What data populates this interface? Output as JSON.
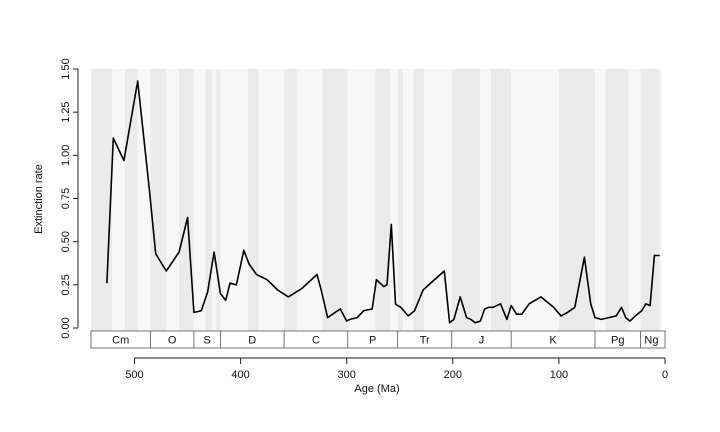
{
  "chart_data": {
    "type": "line",
    "title": "",
    "xlabel": "Age (Ma)",
    "ylabel": "Extinction rate",
    "xlim": [
      541,
      0
    ],
    "ylim": [
      0,
      1.5
    ],
    "x_ticks": [
      500,
      400,
      300,
      200,
      100,
      0
    ],
    "y_ticks": [
      "0.00",
      "0.25",
      "0.50",
      "0.75",
      "1.00",
      "1.25",
      "1.50"
    ],
    "grid": false,
    "legend": "none",
    "line_color": "#000000",
    "periods": [
      {
        "label": "Cm",
        "start": 541,
        "end": 485
      },
      {
        "label": "O",
        "start": 485,
        "end": 444
      },
      {
        "label": "S",
        "start": 444,
        "end": 419
      },
      {
        "label": "D",
        "start": 419,
        "end": 359
      },
      {
        "label": "C",
        "start": 359,
        "end": 299
      },
      {
        "label": "P",
        "start": 299,
        "end": 252
      },
      {
        "label": "Tr",
        "start": 252,
        "end": 201
      },
      {
        "label": "J",
        "start": 201,
        "end": 145
      },
      {
        "label": "K",
        "start": 145,
        "end": 66
      },
      {
        "label": "Pg",
        "start": 66,
        "end": 23
      },
      {
        "label": "Ng",
        "start": 23,
        "end": 2.6
      }
    ],
    "background_bands": [
      {
        "start": 541,
        "end": 521,
        "shade": "#ebebeb"
      },
      {
        "start": 521,
        "end": 509,
        "shade": "#f7f7f7"
      },
      {
        "start": 509,
        "end": 497,
        "shade": "#ebebeb"
      },
      {
        "start": 497,
        "end": 485,
        "shade": "#f7f7f7"
      },
      {
        "start": 485,
        "end": 470,
        "shade": "#ebebeb"
      },
      {
        "start": 470,
        "end": 458,
        "shade": "#f7f7f7"
      },
      {
        "start": 458,
        "end": 444,
        "shade": "#ebebeb"
      },
      {
        "start": 444,
        "end": 433,
        "shade": "#f7f7f7"
      },
      {
        "start": 433,
        "end": 427,
        "shade": "#ebebeb"
      },
      {
        "start": 427,
        "end": 423,
        "shade": "#f7f7f7"
      },
      {
        "start": 423,
        "end": 419,
        "shade": "#ebebeb"
      },
      {
        "start": 419,
        "end": 393,
        "shade": "#f7f7f7"
      },
      {
        "start": 393,
        "end": 383,
        "shade": "#ebebeb"
      },
      {
        "start": 383,
        "end": 359,
        "shade": "#f7f7f7"
      },
      {
        "start": 359,
        "end": 347,
        "shade": "#ebebeb"
      },
      {
        "start": 347,
        "end": 323,
        "shade": "#f7f7f7"
      },
      {
        "start": 323,
        "end": 299,
        "shade": "#ebebeb"
      },
      {
        "start": 299,
        "end": 273,
        "shade": "#f7f7f7"
      },
      {
        "start": 273,
        "end": 259,
        "shade": "#ebebeb"
      },
      {
        "start": 259,
        "end": 252,
        "shade": "#f7f7f7"
      },
      {
        "start": 252,
        "end": 247,
        "shade": "#ebebeb"
      },
      {
        "start": 247,
        "end": 237,
        "shade": "#f7f7f7"
      },
      {
        "start": 237,
        "end": 227,
        "shade": "#ebebeb"
      },
      {
        "start": 227,
        "end": 201,
        "shade": "#f7f7f7"
      },
      {
        "start": 201,
        "end": 174,
        "shade": "#ebebeb"
      },
      {
        "start": 174,
        "end": 164,
        "shade": "#f7f7f7"
      },
      {
        "start": 164,
        "end": 145,
        "shade": "#ebebeb"
      },
      {
        "start": 145,
        "end": 100,
        "shade": "#f7f7f7"
      },
      {
        "start": 100,
        "end": 66,
        "shade": "#ebebeb"
      },
      {
        "start": 66,
        "end": 56,
        "shade": "#f7f7f7"
      },
      {
        "start": 56,
        "end": 34,
        "shade": "#ebebeb"
      },
      {
        "start": 34,
        "end": 23,
        "shade": "#f7f7f7"
      },
      {
        "start": 23,
        "end": 5,
        "shade": "#ebebeb"
      },
      {
        "start": 5,
        "end": 2.6,
        "shade": "#f7f7f7"
      }
    ],
    "series": [
      {
        "x": [
          526,
          520,
          510,
          497,
          486,
          480,
          470,
          458,
          450,
          444,
          437,
          431,
          425,
          419,
          414,
          410,
          404,
          397,
          392,
          385,
          375,
          365,
          355,
          342,
          328,
          324,
          318,
          311,
          306,
          300,
          297,
          290,
          284,
          276,
          272,
          265,
          262,
          258,
          254,
          252,
          249,
          242,
          236,
          228,
          219,
          208,
          203,
          199,
          193,
          187,
          183,
          179,
          174,
          170,
          166,
          162,
          155,
          149,
          145,
          140,
          135,
          128,
          117,
          105,
          98,
          92,
          85,
          76,
          70,
          66,
          60,
          53,
          46,
          41,
          37,
          33,
          28,
          22,
          18,
          14,
          10,
          5
        ],
        "y": [
          0.26,
          1.1,
          0.97,
          1.43,
          0.8,
          0.43,
          0.33,
          0.44,
          0.64,
          0.09,
          0.1,
          0.21,
          0.44,
          0.2,
          0.16,
          0.26,
          0.25,
          0.45,
          0.37,
          0.31,
          0.28,
          0.22,
          0.18,
          0.23,
          0.31,
          0.22,
          0.06,
          0.09,
          0.11,
          0.04,
          0.05,
          0.06,
          0.1,
          0.11,
          0.28,
          0.24,
          0.25,
          0.6,
          0.14,
          0.13,
          0.12,
          0.07,
          0.1,
          0.22,
          0.27,
          0.33,
          0.03,
          0.05,
          0.18,
          0.06,
          0.05,
          0.03,
          0.04,
          0.11,
          0.12,
          0.12,
          0.14,
          0.05,
          0.13,
          0.08,
          0.08,
          0.14,
          0.18,
          0.12,
          0.07,
          0.09,
          0.12,
          0.41,
          0.14,
          0.06,
          0.05,
          0.06,
          0.07,
          0.12,
          0.06,
          0.04,
          0.07,
          0.1,
          0.14,
          0.13,
          0.42,
          0.42
        ]
      }
    ]
  }
}
